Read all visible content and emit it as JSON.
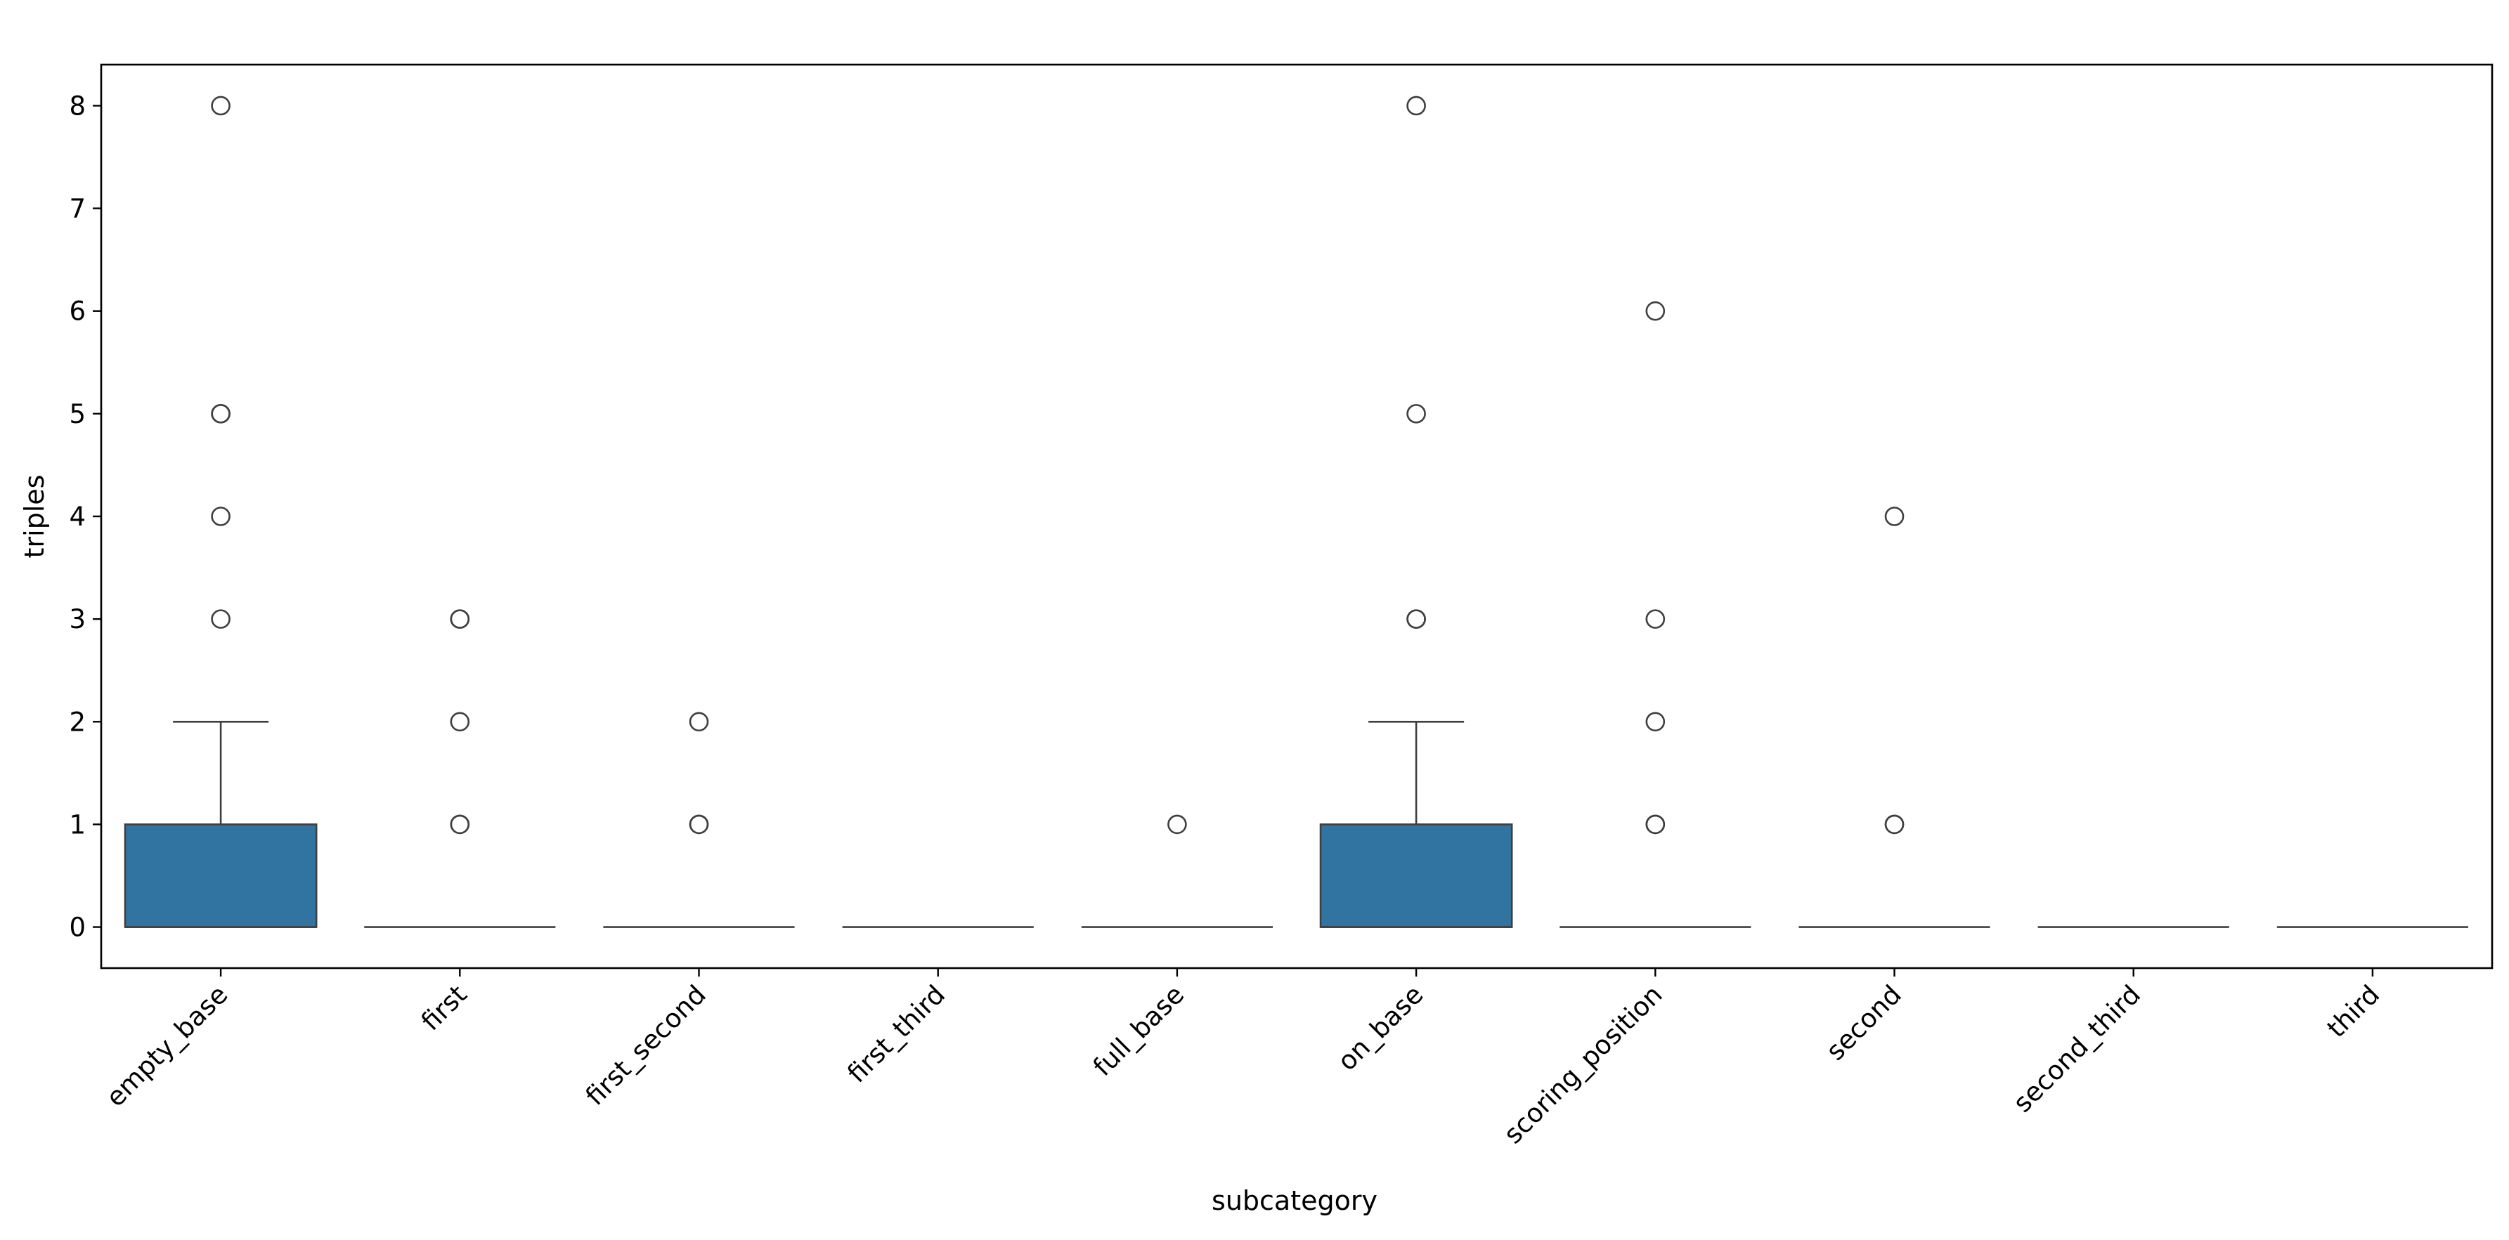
{
  "chart_data": {
    "type": "box",
    "title": "",
    "xlabel": "subcategory",
    "ylabel": "triples",
    "ylim": [
      -0.4,
      8.4
    ],
    "yticks": [
      0,
      1,
      2,
      3,
      4,
      5,
      6,
      7,
      8
    ],
    "grid": false,
    "categories": [
      "empty_base",
      "first",
      "first_second",
      "first_third",
      "full_base",
      "on_base",
      "scoring_position",
      "second",
      "second_third",
      "third"
    ],
    "boxes": [
      {
        "category": "empty_base",
        "q1": 0,
        "median": 0,
        "q3": 1,
        "whisker_low": 0,
        "whisker_high": 2,
        "outliers": [
          3,
          4,
          5,
          5,
          8
        ]
      },
      {
        "category": "first",
        "q1": 0,
        "median": 0,
        "q3": 0,
        "whisker_low": 0,
        "whisker_high": 0,
        "outliers": [
          1,
          1,
          2,
          3,
          3
        ]
      },
      {
        "category": "first_second",
        "q1": 0,
        "median": 0,
        "q3": 0,
        "whisker_low": 0,
        "whisker_high": 0,
        "outliers": [
          1,
          1,
          2
        ]
      },
      {
        "category": "first_third",
        "q1": 0,
        "median": 0,
        "q3": 0,
        "whisker_low": 0,
        "whisker_high": 0,
        "outliers": []
      },
      {
        "category": "full_base",
        "q1": 0,
        "median": 0,
        "q3": 0,
        "whisker_low": 0,
        "whisker_high": 0,
        "outliers": [
          1
        ]
      },
      {
        "category": "on_base",
        "q1": 0,
        "median": 0,
        "q3": 1,
        "whisker_low": 0,
        "whisker_high": 2,
        "outliers": [
          3,
          3,
          5,
          8
        ]
      },
      {
        "category": "scoring_position",
        "q1": 0,
        "median": 0,
        "q3": 0,
        "whisker_low": 0,
        "whisker_high": 0,
        "outliers": [
          1,
          1,
          2,
          3,
          6
        ]
      },
      {
        "category": "second",
        "q1": 0,
        "median": 0,
        "q3": 0,
        "whisker_low": 0,
        "whisker_high": 0,
        "outliers": [
          1,
          1,
          4
        ]
      },
      {
        "category": "second_third",
        "q1": 0,
        "median": 0,
        "q3": 0,
        "whisker_low": 0,
        "whisker_high": 0,
        "outliers": []
      },
      {
        "category": "third",
        "q1": 0,
        "median": 0,
        "q3": 0,
        "whisker_low": 0,
        "whisker_high": 0,
        "outliers": []
      }
    ],
    "colors": {
      "box_fill": "#3274a1",
      "line": "#3f3f3f",
      "frame": "#000000"
    }
  }
}
